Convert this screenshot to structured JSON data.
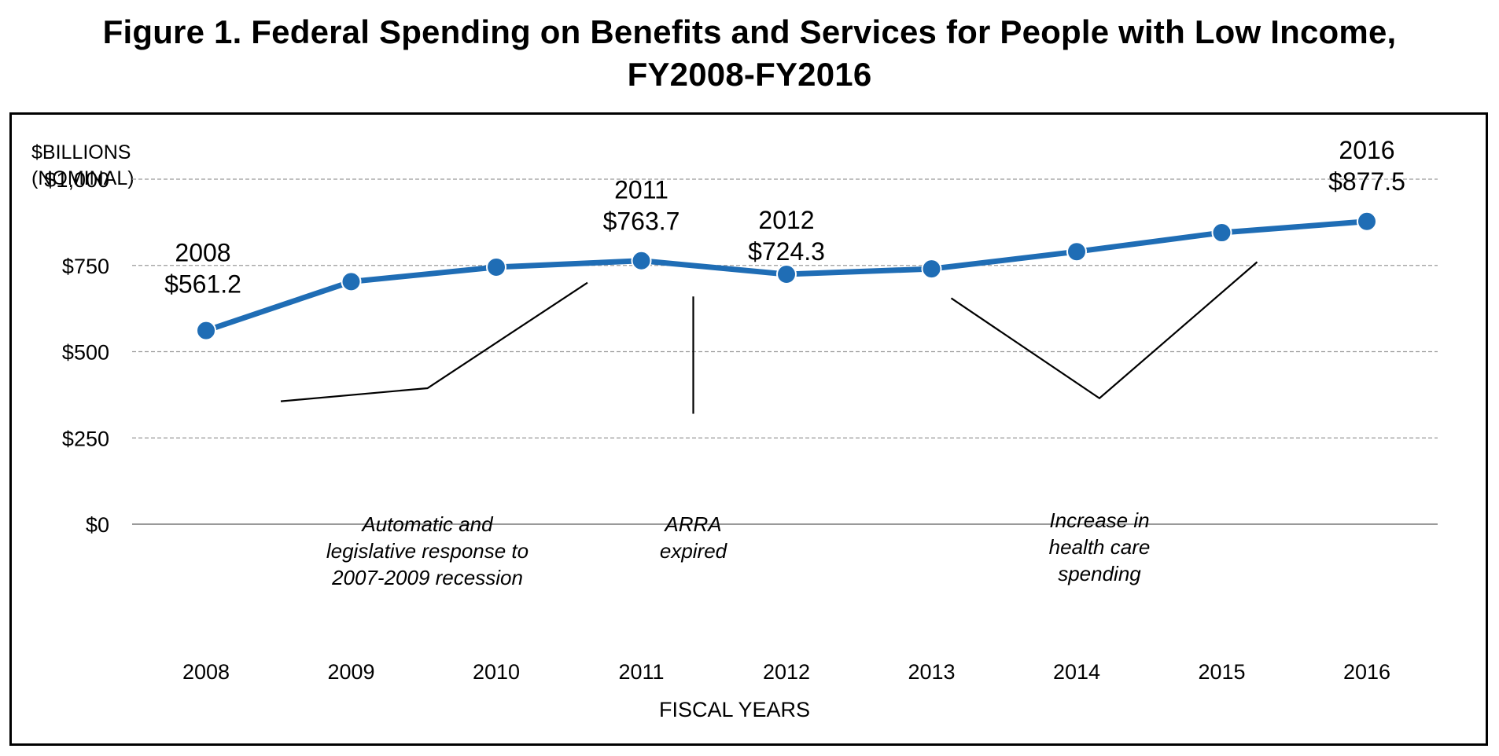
{
  "figure": {
    "title_line1": "Figure 1. Federal Spending on Benefits and Services for People with Low Income,",
    "title_line2": "FY2008-FY2016"
  },
  "chart_data": {
    "type": "line",
    "title": "Figure 1. Federal Spending on Benefits and Services for People with Low Income, FY2008-FY2016",
    "xlabel": "FISCAL YEARS",
    "ylabel_line1": "$BILLIONS",
    "ylabel_line2": "(NOMINAL)",
    "categories": [
      "2008",
      "2009",
      "2010",
      "2011",
      "2012",
      "2013",
      "2014",
      "2015",
      "2016"
    ],
    "series": [
      {
        "name": "Federal spending on benefits and services for people with low income",
        "color": "#1f6db5",
        "values": [
          561.2,
          703,
          745,
          763.7,
          724.3,
          740,
          790,
          845,
          877.5
        ]
      }
    ],
    "ylim": [
      0,
      1000
    ],
    "yticks": [
      0,
      250,
      500,
      750,
      1000
    ],
    "ytick_labels": [
      "$0",
      "$250",
      "$500",
      "$750",
      "$1,000"
    ],
    "grid": true,
    "legend": "none",
    "data_labels": [
      {
        "index": 0,
        "line1": "2008",
        "line2": "$561.2"
      },
      {
        "index": 3,
        "line1": "2011",
        "line2": "$763.7"
      },
      {
        "index": 4,
        "line1": "2012",
        "line2": "$724.3"
      },
      {
        "index": 8,
        "line1": "2016",
        "line2": "$877.5"
      }
    ],
    "annotations": [
      {
        "name": "recession-annotation",
        "lines": [
          "Automatic and",
          "legislative response to",
          "2007-2009 recession"
        ],
        "spans": [
          "2008",
          "2011"
        ]
      },
      {
        "name": "arra-annotation",
        "lines": [
          "ARRA",
          "expired"
        ],
        "at": "between 2011 and 2012"
      },
      {
        "name": "health-care-annotation",
        "lines": [
          "Increase in",
          "health care",
          "spending"
        ],
        "spans": [
          "2013",
          "2016"
        ]
      }
    ]
  }
}
